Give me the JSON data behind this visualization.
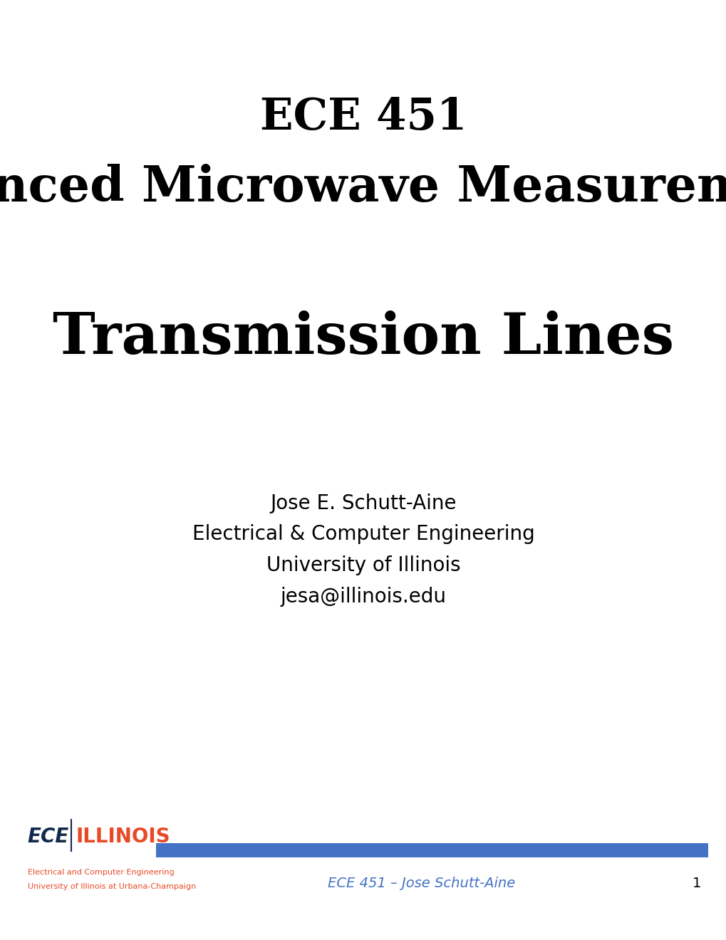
{
  "title_line1": "ECE 451",
  "title_line2": "Advanced Microwave Measurements",
  "subtitle": "Transmission Lines",
  "author_line1": "Jose E. Schutt-Aine",
  "author_line2": "Electrical & Computer Engineering",
  "author_line3": "University of Illinois",
  "author_line4": "jesa@illinois.edu",
  "footer_course": "ECE 451 – Jose Schutt-Aine",
  "footer_page": "1",
  "footer_logo_ece": "ECE",
  "footer_logo_illinois": "ILLINOIS",
  "footer_sub1": "Electrical and Computer Engineering",
  "footer_sub2": "University of Illinois at Urbana-Champaign",
  "bg_color": "#ffffff",
  "title_color": "#000000",
  "subtitle_color": "#000000",
  "author_color": "#000000",
  "footer_text_color": "#4472c4",
  "footer_bar_color": "#4472c4",
  "footer_page_color": "#000000",
  "ece_color": "#13294b",
  "illinois_color": "#e84a27",
  "footer_sub_color": "#e84a27",
  "title1_fontsize": 44,
  "title2_fontsize": 50,
  "subtitle_fontsize": 58,
  "author_fontsize": 20,
  "footer_fontsize": 14,
  "footer_sub_fontsize": 8,
  "logo_ece_fontsize": 20,
  "logo_illinois_fontsize": 20
}
